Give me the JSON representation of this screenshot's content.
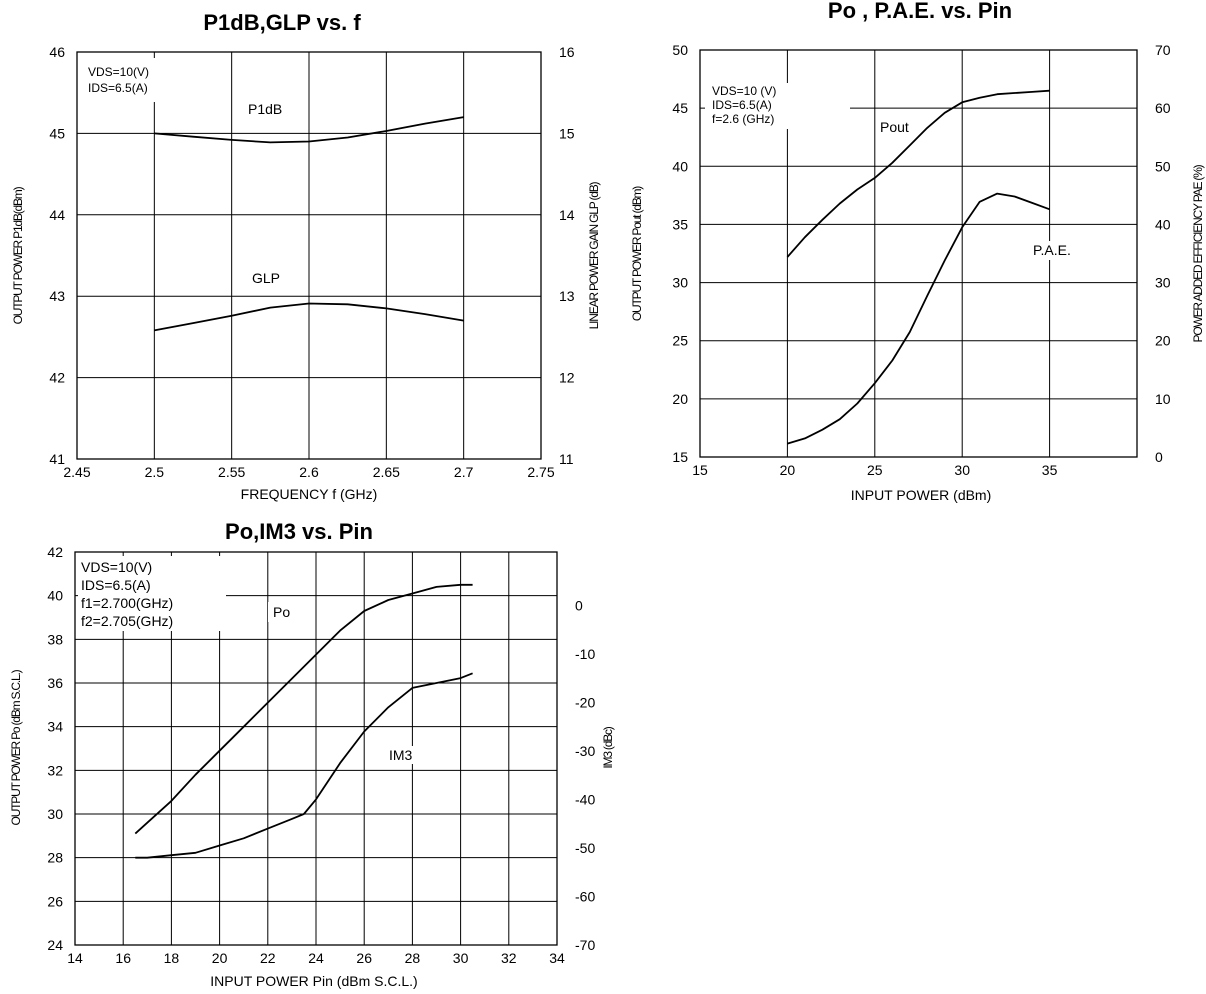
{
  "chart_data": [
    {
      "type": "line",
      "title": "P1dB,GLP vs. f",
      "xlabel": "FREQUENCY f (GHz)",
      "ylabel_left": "OUTPUT POWER P1dB(dBm)",
      "ylabel_right": "LINEAR POWER GAIN GLP (dB)",
      "xlim": [
        2.45,
        2.75
      ],
      "ylim_left": [
        41,
        46
      ],
      "ylim_right": [
        11,
        16
      ],
      "x_ticks": [
        "2.45",
        "2.5",
        "2.55",
        "2.6",
        "2.65",
        "2.7",
        "2.75"
      ],
      "y_left_ticks": [
        "41",
        "42",
        "43",
        "44",
        "45",
        "46"
      ],
      "y_right_ticks": [
        "11",
        "12",
        "13",
        "14",
        "15",
        "16"
      ],
      "grid": true,
      "conditions": [
        "VDS=10(V)",
        "IDS=6.5(A)"
      ],
      "series": [
        {
          "name": "P1dB",
          "axis": "left",
          "x": [
            2.5,
            2.525,
            2.55,
            2.575,
            2.6,
            2.625,
            2.65,
            2.675,
            2.7
          ],
          "y": [
            45.0,
            44.96,
            44.92,
            44.89,
            44.9,
            44.95,
            45.03,
            45.12,
            45.2
          ]
        },
        {
          "name": "GLP",
          "axis": "right",
          "x": [
            2.5,
            2.525,
            2.55,
            2.575,
            2.6,
            2.625,
            2.65,
            2.675,
            2.7
          ],
          "y": [
            12.58,
            12.67,
            12.76,
            12.86,
            12.91,
            12.9,
            12.85,
            12.78,
            12.7
          ]
        }
      ]
    },
    {
      "type": "line",
      "title": "Po , P.A.E. vs. Pin",
      "xlabel": "INPUT POWER (dBm)",
      "ylabel_left": "OUTPUT POWER Pout (dBm)",
      "ylabel_right": "POWER ADDED EFFICIENCY PAE (%)",
      "xlim": [
        15,
        40
      ],
      "ylim_left": [
        15,
        50
      ],
      "ylim_right": [
        0,
        70
      ],
      "x_ticks": [
        "15",
        "20",
        "25",
        "30",
        "35"
      ],
      "y_left_ticks": [
        "15",
        "20",
        "25",
        "30",
        "35",
        "40",
        "45",
        "50"
      ],
      "y_right_ticks": [
        "0",
        "10",
        "20",
        "30",
        "40",
        "50",
        "60",
        "70"
      ],
      "grid": true,
      "conditions": [
        "VDS=10 (V)",
        "IDS=6.5(A)",
        "f=2.6 (GHz)"
      ],
      "series": [
        {
          "name": "Pout",
          "axis": "left",
          "x": [
            20,
            21,
            22,
            23,
            24,
            25,
            26,
            27,
            28,
            29,
            30,
            31,
            32,
            33,
            34,
            35
          ],
          "y": [
            32.2,
            33.9,
            35.4,
            36.8,
            38.0,
            39.0,
            40.3,
            41.8,
            43.3,
            44.6,
            45.5,
            45.9,
            46.2,
            46.3,
            46.4,
            46.5
          ]
        },
        {
          "name": "P.A.E.",
          "axis": "right",
          "x": [
            20,
            21,
            22,
            23,
            24,
            25,
            26,
            27,
            28,
            29,
            30,
            31,
            32,
            33,
            34,
            35
          ],
          "y": [
            2.3,
            3.2,
            4.7,
            6.5,
            9.2,
            12.7,
            16.6,
            21.5,
            27.7,
            33.8,
            39.5,
            43.9,
            45.3,
            44.8,
            43.7,
            42.6
          ]
        }
      ]
    },
    {
      "type": "line",
      "title": "Po,IM3 vs. Pin",
      "xlabel": "INPUT POWER Pin (dBm S.C.L.)",
      "ylabel_left": "OUTPUT POWER Po (dBm S.C.L.)",
      "ylabel_right": "IM3 (dBc)",
      "xlim": [
        14,
        34
      ],
      "ylim_left": [
        24,
        42
      ],
      "ylim_right": [
        -70,
        11
      ],
      "x_ticks": [
        "14",
        "16",
        "18",
        "20",
        "22",
        "24",
        "26",
        "28",
        "30",
        "32",
        "34"
      ],
      "y_left_ticks": [
        "24",
        "26",
        "28",
        "30",
        "32",
        "34",
        "36",
        "38",
        "40",
        "42"
      ],
      "y_right_ticks": [
        "-70",
        "-60",
        "-50",
        "-40",
        "-30",
        "-20",
        "-10",
        "0"
      ],
      "grid": true,
      "conditions": [
        "VDS=10(V)",
        "IDS=6.5(A)",
        "f1=2.700(GHz)",
        "f2=2.705(GHz)"
      ],
      "series": [
        {
          "name": "Po",
          "axis": "left",
          "x": [
            16.5,
            17.0,
            18.0,
            19.0,
            20.0,
            21.0,
            22.0,
            23.0,
            24.0,
            25.0,
            26.0,
            27.0,
            28.0,
            29.0,
            30.0,
            30.5
          ],
          "y": [
            29.1,
            29.6,
            30.6,
            31.8,
            32.9,
            34.0,
            35.1,
            36.2,
            37.3,
            38.4,
            39.3,
            39.8,
            40.1,
            40.4,
            40.5,
            40.5
          ]
        },
        {
          "name": "IM3",
          "axis": "right",
          "x": [
            16.5,
            17.0,
            18.0,
            19.0,
            20.0,
            21.0,
            22.0,
            23.0,
            23.5,
            24.0,
            25.0,
            26.0,
            27.0,
            28.0,
            29.0,
            30.0,
            30.5
          ],
          "y": [
            -52.0,
            -52.0,
            -51.5,
            -51.0,
            -49.5,
            -48.0,
            -46.0,
            -44.0,
            -43.0,
            -40.0,
            -32.5,
            -26.0,
            -21.0,
            -17.0,
            -16.0,
            -15.0,
            -14.0
          ]
        }
      ]
    }
  ]
}
